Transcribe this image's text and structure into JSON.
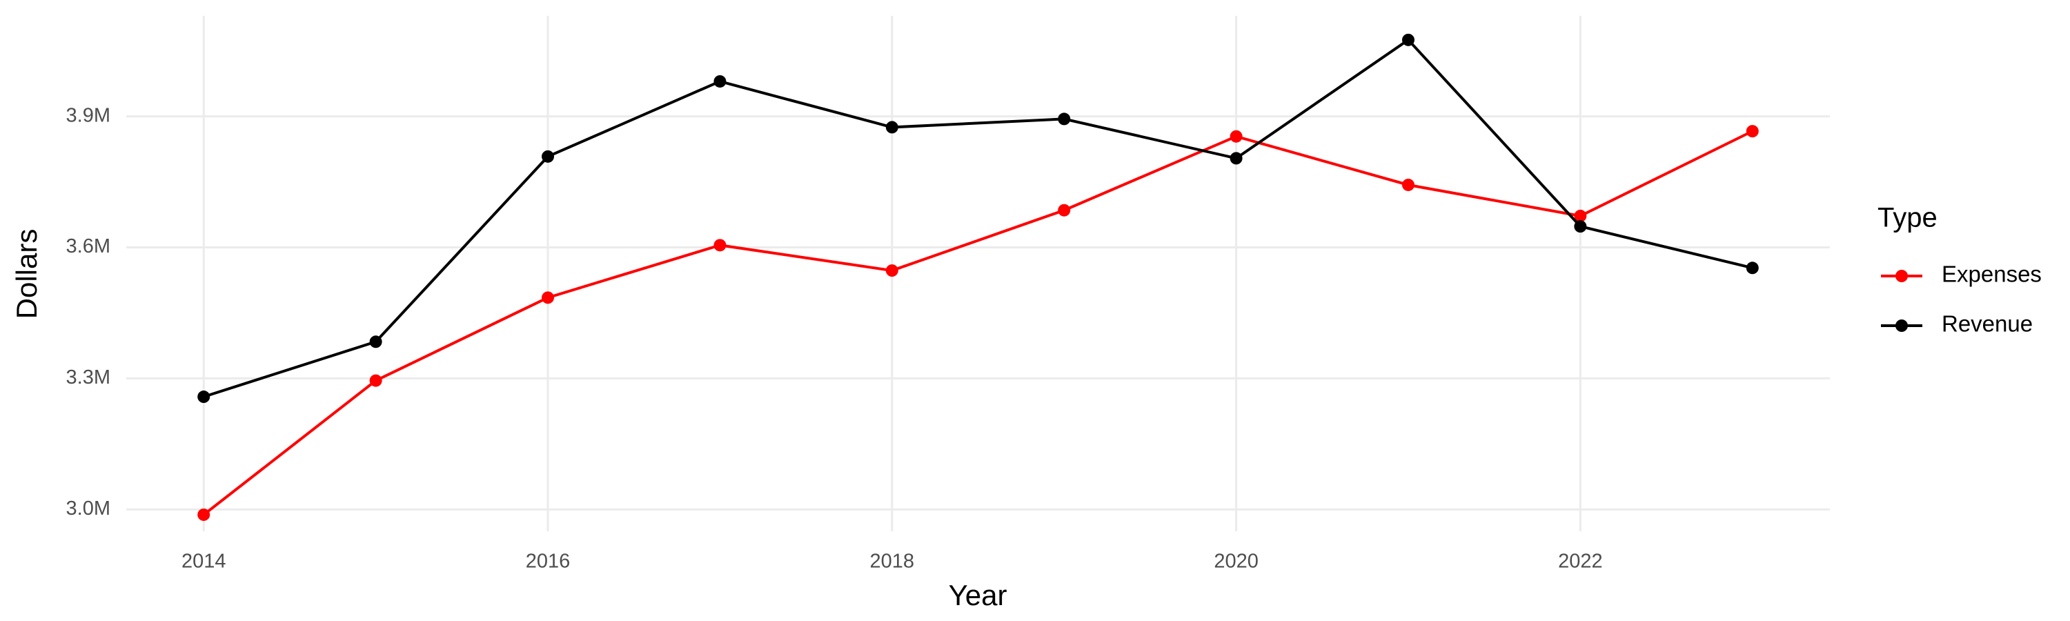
{
  "chart_data": {
    "type": "line",
    "x_label": "Year",
    "y_label": "Dollars",
    "legend_title": "Type",
    "x": [
      2014,
      2015,
      2016,
      2017,
      2018,
      2019,
      2020,
      2021,
      2022,
      2023
    ],
    "series": [
      {
        "name": "Expenses",
        "color": "#ff0000",
        "values": [
          2988000,
          3295000,
          3485000,
          3605000,
          3547000,
          3685000,
          3854000,
          3743000,
          3672000,
          3866000
        ]
      },
      {
        "name": "Revenue",
        "color": "#000000",
        "values": [
          3258000,
          3384000,
          3808000,
          3980000,
          3875000,
          3894000,
          3804000,
          4075000,
          3648000,
          3553000
        ]
      }
    ],
    "xlim": [
      2013.55,
      2023.45
    ],
    "xticks": [
      2014,
      2016,
      2018,
      2020,
      2022
    ],
    "ylim": [
      2950000,
      4130000
    ],
    "yticks": [
      {
        "value": 3000000,
        "label": "3.0M"
      },
      {
        "value": 3300000,
        "label": "3.3M"
      },
      {
        "value": 3600000,
        "label": "3.6M"
      },
      {
        "value": 3900000,
        "label": "3.9M"
      }
    ],
    "grid": true,
    "legend_position": "right"
  }
}
